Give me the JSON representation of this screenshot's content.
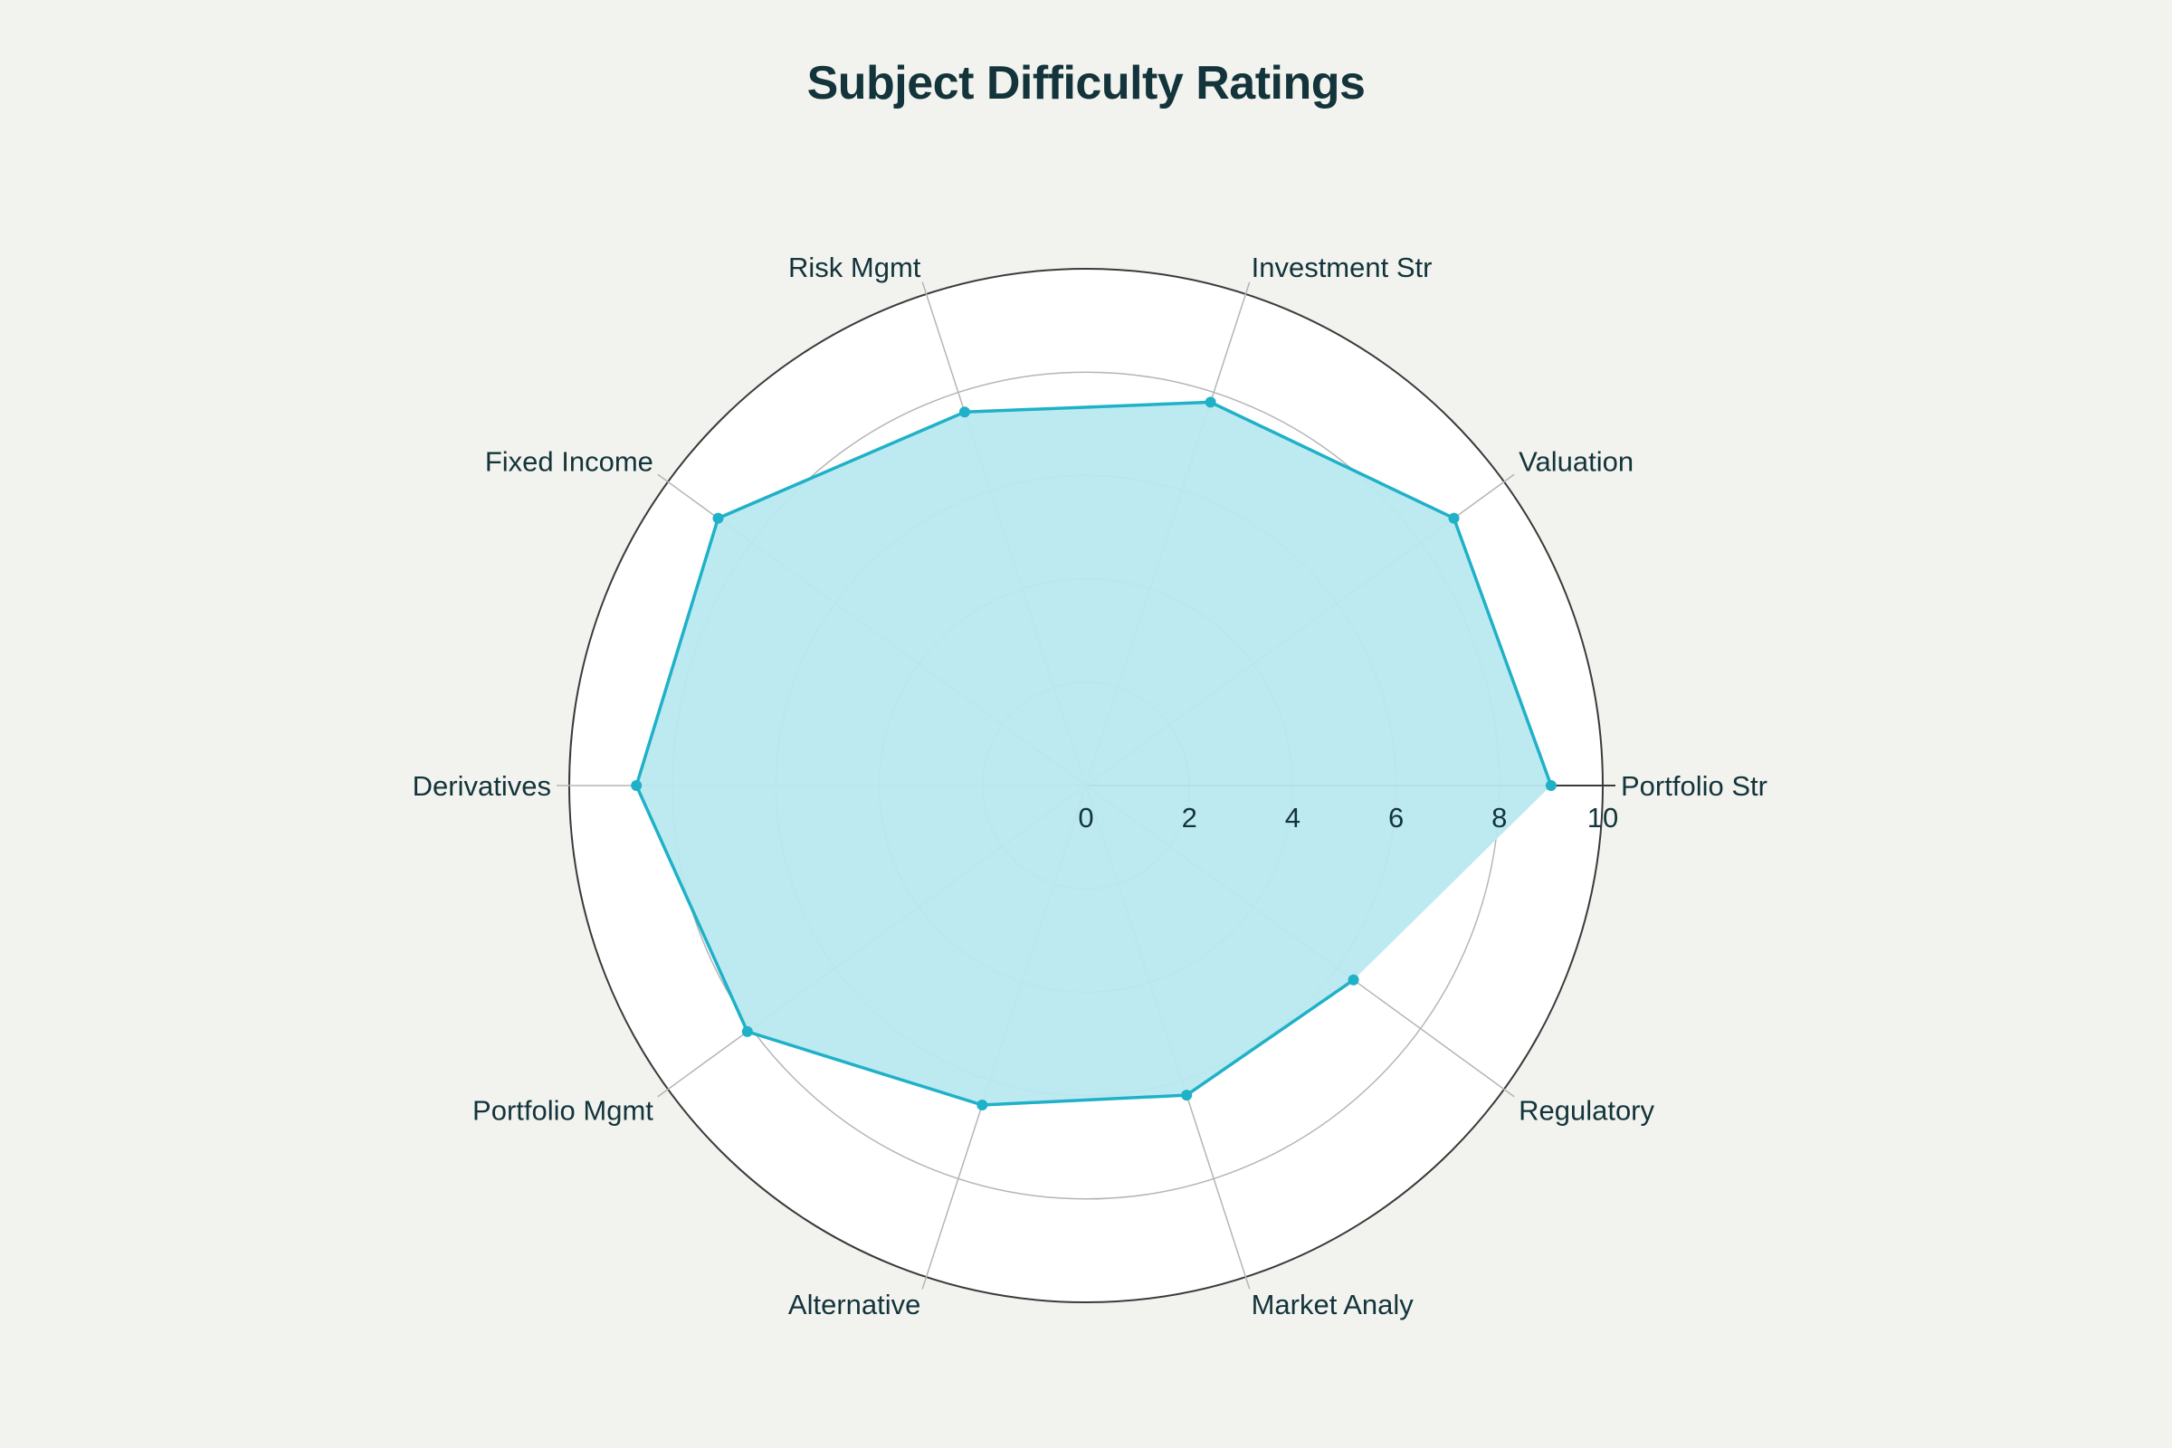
{
  "chart_data": {
    "type": "radar",
    "title": "Subject Difficulty Ratings",
    "categories": [
      "Portfolio Str",
      "Valuation",
      "Investment Str",
      "Risk Mgmt",
      "Fixed Income",
      "Derivatives",
      "Portfolio Mgmt",
      "Alternative",
      "Market Analy",
      "Regulatory"
    ],
    "series": [
      {
        "values": [
          9,
          8.8,
          7.8,
          7.6,
          8.8,
          8.7,
          8.1,
          6.5,
          6.3,
          6.4
        ]
      }
    ],
    "radial_range": [
      0,
      10
    ],
    "radial_ticks": [
      "0",
      "2",
      "4",
      "6",
      "8",
      "10"
    ],
    "grid": true,
    "legend": "none",
    "colors": {
      "line": "#1fb1c8",
      "fill": "#b9e9ef",
      "text": "#13343b",
      "background": "#f2f3ee",
      "plot_background": "#ffffff"
    }
  }
}
